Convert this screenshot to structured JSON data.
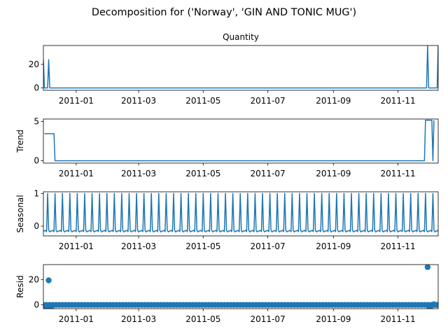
{
  "suptitle": "Decomposition for ('Norway', 'GIN AND TONIC MUG')",
  "colors": {
    "line": "#1f77b4",
    "axis": "#000000"
  },
  "chart_data": [
    {
      "type": "line",
      "title": "Quantity",
      "ylabel": "",
      "xlim": [
        "2010-12-01",
        "2011-12-09"
      ],
      "ylim": [
        -2,
        36
      ],
      "yticks": [
        0,
        20
      ],
      "xticks": [
        "2011-01-01",
        "2011-03-01",
        "2011-05-01",
        "2011-07-01",
        "2011-09-01",
        "2011-11-01"
      ],
      "xtick_labels": [
        "2011-01",
        "2011-03",
        "2011-05",
        "2011-07",
        "2011-09",
        "2011-11"
      ],
      "points": [
        [
          "2010-12-01",
          24
        ],
        [
          "2010-12-02",
          0
        ],
        [
          "2010-12-05",
          0
        ],
        [
          "2010-12-06",
          24
        ],
        [
          "2010-12-07",
          0
        ],
        [
          "2011-11-28",
          0
        ],
        [
          "2011-11-29",
          36
        ],
        [
          "2011-11-30",
          0
        ],
        [
          "2011-12-08",
          0
        ],
        [
          "2011-12-09",
          36
        ]
      ]
    },
    {
      "type": "line",
      "title": "",
      "ylabel": "Trend",
      "xlim": [
        "2010-12-01",
        "2011-12-09"
      ],
      "ylim": [
        -0.3,
        5.3
      ],
      "yticks": [
        0,
        5
      ],
      "xticks": [
        "2011-01-01",
        "2011-03-01",
        "2011-05-01",
        "2011-07-01",
        "2011-09-01",
        "2011-11-01"
      ],
      "xtick_labels": [
        "2011-01",
        "2011-03",
        "2011-05",
        "2011-07",
        "2011-09",
        "2011-11"
      ],
      "points": [
        [
          "2010-12-02",
          3.43
        ],
        [
          "2010-12-11",
          3.43
        ],
        [
          "2010-12-12",
          0
        ],
        [
          "2011-11-26",
          0
        ],
        [
          "2011-11-27",
          5.14
        ],
        [
          "2011-12-03",
          5.14
        ],
        [
          "2011-12-04",
          0
        ],
        [
          "2011-12-05",
          5.14
        ]
      ]
    },
    {
      "type": "line",
      "title": "",
      "ylabel": "Seasonal",
      "xlim": [
        "2010-12-01",
        "2011-12-09"
      ],
      "ylim": [
        -0.3,
        1.05
      ],
      "yticks": [
        0,
        1
      ],
      "xticks": [
        "2011-01-01",
        "2011-03-01",
        "2011-05-01",
        "2011-07-01",
        "2011-09-01",
        "2011-11-01"
      ],
      "xtick_labels": [
        "2011-01",
        "2011-03",
        "2011-05",
        "2011-07",
        "2011-09",
        "2011-11"
      ],
      "period_days": 7,
      "period_start": "2010-12-01",
      "pattern": [
        -0.15,
        -0.15,
        -0.13,
        -0.17,
        1.0,
        -0.13,
        -0.18
      ],
      "end": "2011-12-09"
    },
    {
      "type": "scatter",
      "title": "",
      "ylabel": "Resid",
      "xlim": [
        "2010-12-01",
        "2011-12-09"
      ],
      "ylim": [
        -3,
        32
      ],
      "yticks": [
        0,
        20
      ],
      "xticks": [
        "2011-01-01",
        "2011-03-01",
        "2011-05-01",
        "2011-07-01",
        "2011-09-01",
        "2011-11-01"
      ],
      "xtick_labels": [
        "2011-01",
        "2011-03",
        "2011-05",
        "2011-07",
        "2011-09",
        "2011-11"
      ],
      "baseline": 0,
      "baseline_start": "2010-12-01",
      "baseline_end": "2011-12-09",
      "baseline_step_days": 3,
      "points": [
        [
          "2010-12-01",
          -2
        ],
        [
          "2010-12-02",
          -2
        ],
        [
          "2010-12-03",
          -2
        ],
        [
          "2010-12-04",
          -1.5
        ],
        [
          "2010-12-05",
          -2
        ],
        [
          "2010-12-06",
          19.5
        ],
        [
          "2010-12-07",
          -2
        ],
        [
          "2010-12-08",
          -1.5
        ],
        [
          "2010-12-09",
          -1
        ],
        [
          "2011-11-29",
          30
        ],
        [
          "2011-11-30",
          -1
        ],
        [
          "2011-12-02",
          -1
        ],
        [
          "2011-12-04",
          0
        ],
        [
          "2011-12-05",
          0.5
        ],
        [
          "2011-12-06",
          0
        ]
      ]
    }
  ]
}
